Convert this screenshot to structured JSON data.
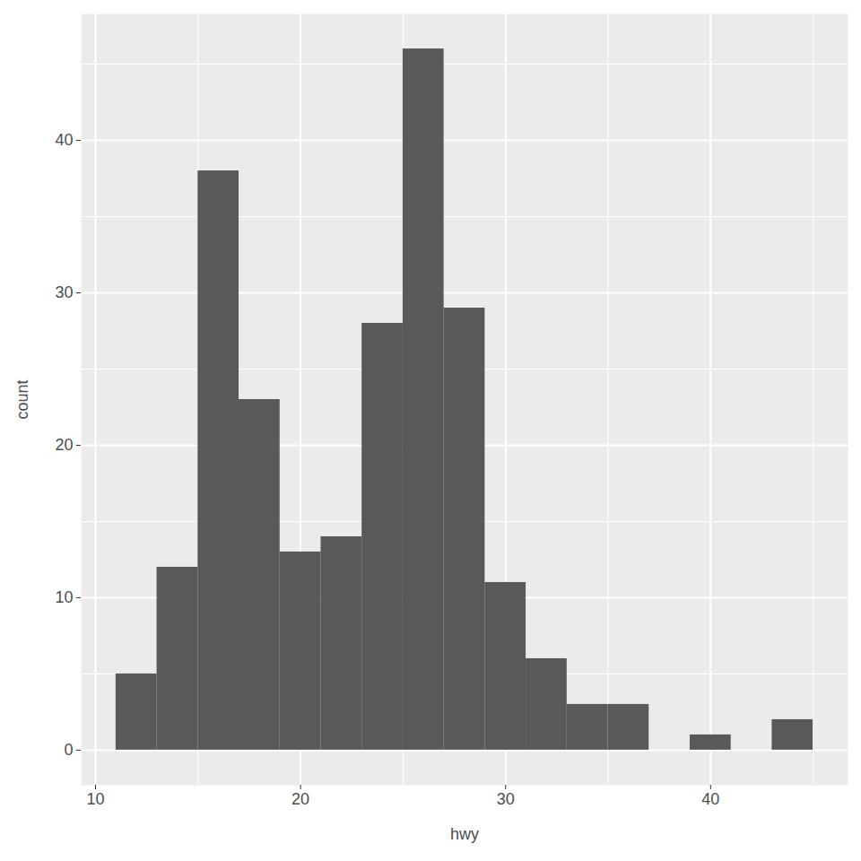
{
  "chart_data": {
    "type": "histogram",
    "xlabel": "hwy",
    "ylabel": "count",
    "bins": [
      11,
      13,
      15,
      17,
      19,
      21,
      23,
      25,
      27,
      29,
      31,
      33,
      35,
      37,
      39,
      41,
      43,
      45
    ],
    "counts": [
      5,
      12,
      38,
      23,
      13,
      14,
      28,
      46,
      29,
      11,
      6,
      3,
      3,
      0,
      1,
      0,
      2
    ],
    "color": "#595959",
    "xlim": [
      9.3,
      46.7
    ],
    "ylim": [
      -2.3,
      48.3
    ],
    "xticks": [
      10,
      20,
      30,
      40
    ],
    "yticks": [
      0,
      10,
      20,
      30,
      40
    ],
    "grid": true
  }
}
